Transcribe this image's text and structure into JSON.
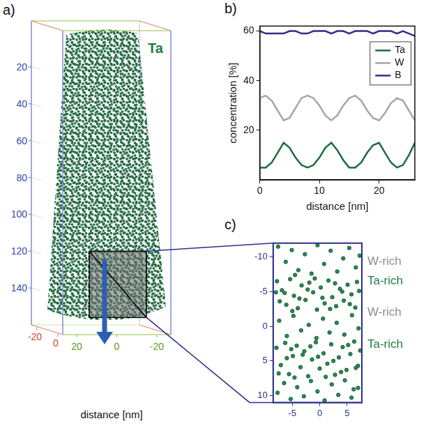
{
  "chart_data": [
    {
      "panel": "a)",
      "type": "atom_map",
      "title": "Ta",
      "color": "#1f7a46",
      "zlim": [
        160,
        -5
      ],
      "zticks": [
        20,
        40,
        60,
        80,
        100,
        120,
        140
      ],
      "xlim": [
        27,
        -27
      ],
      "xticks": [
        20,
        0,
        -20
      ],
      "depth_lim": [
        -26,
        4
      ],
      "depth_ticks": [
        -20,
        0
      ],
      "xlabel": "distance [nm]",
      "zoom_region": [
        120,
        156
      ]
    },
    {
      "panel": "b)",
      "type": "line",
      "xlabel": "distance [nm]",
      "ylabel": "concentration [%]",
      "x": [
        0,
        1,
        2,
        3,
        4,
        5,
        6,
        7,
        8,
        9,
        10,
        11,
        12,
        13,
        14,
        15,
        16,
        17,
        18,
        19,
        20,
        21,
        22,
        23,
        24,
        25,
        26
      ],
      "series": [
        {
          "name": "Ta",
          "color": "#1a6b3a",
          "values": [
            5,
            5,
            7,
            11,
            15,
            13,
            9,
            6,
            5,
            6,
            9,
            13,
            15,
            12,
            8,
            5,
            5,
            7,
            11,
            14,
            15,
            11,
            7,
            5,
            6,
            10,
            15
          ]
        },
        {
          "name": "W",
          "color": "#a6a6a6",
          "values": [
            33,
            34,
            32,
            28,
            24,
            25,
            29,
            33,
            34,
            33,
            30,
            26,
            24,
            26,
            30,
            33,
            34,
            32,
            28,
            25,
            24,
            27,
            31,
            33,
            32,
            28,
            24
          ]
        },
        {
          "name": "B",
          "color": "#2b2f8c",
          "values": [
            60,
            59,
            59,
            59,
            59,
            60,
            60,
            59,
            59,
            60,
            60,
            60,
            59,
            60,
            60,
            59,
            60,
            60,
            60,
            59,
            60,
            60,
            60,
            59,
            60,
            59,
            58
          ]
        }
      ],
      "xlim": [
        0,
        26
      ],
      "xticks": [
        0,
        10,
        20
      ],
      "ylim": [
        0,
        62
      ],
      "yticks": [
        20,
        40,
        60
      ],
      "legend": "upper right",
      "grid": false
    },
    {
      "panel": "c)",
      "type": "scatter",
      "color": "#2a8a4f",
      "x": [
        -7.8,
        -6.9,
        -6.1,
        -5.4,
        -4.7,
        -4.0,
        -3.3,
        -2.6,
        -1.9,
        -1.2,
        -0.5,
        0.2,
        0.9,
        1.6,
        2.3,
        3.0,
        3.7,
        4.4,
        5.1,
        5.8,
        6.5,
        7.2,
        -7.3,
        -6.4,
        -5.0,
        -3.7,
        -2.2,
        -0.9,
        0.5,
        1.9,
        2.8,
        4.1,
        5.5,
        6.8,
        -8.0,
        -7.9,
        -7.1,
        -6.3,
        -5.6,
        -4.9,
        -4.2,
        -3.5,
        -2.8,
        -2.1,
        -1.4,
        -0.7,
        0.0,
        0.7,
        1.4,
        2.1,
        2.8,
        3.5,
        4.2,
        4.9,
        5.6,
        6.3,
        7.0,
        -7.5,
        -6.0,
        -4.6,
        -3.1,
        -1.7,
        -0.3,
        1.1,
        2.5,
        3.9,
        5.2,
        6.6,
        7.4,
        -5.2,
        -7.6,
        -6.2,
        -5.1,
        -3.9,
        -2.7,
        -1.5,
        -0.4,
        0.8,
        2.0,
        3.2,
        4.3,
        5.4,
        6.6,
        7.3,
        -4.5,
        -7.4,
        -6.0,
        -4.8,
        -3.4,
        -2.0,
        -0.6,
        0.6,
        1.8,
        3.1,
        4.5,
        5.9,
        7.1,
        -7.7,
        -6.5,
        -5.3,
        -4.1,
        -2.9,
        -1.6,
        -0.4,
        0.9,
        2.2,
        3.4,
        4.6,
        5.8,
        7.0,
        6.2
      ],
      "values": [
        -6.5,
        -5.2,
        -3.1,
        -6.8,
        -4.4,
        -2.6,
        -5.9,
        -3.8,
        -6.3,
        -4.9,
        -2.4,
        -5.6,
        -3.3,
        -6.6,
        -4.2,
        -2.9,
        -5.4,
        -3.7,
        -6.0,
        -4.6,
        -2.7,
        -5.1,
        -3.6,
        -4.8,
        -2.2,
        -4.0,
        -5.3,
        -6.9,
        -4.1,
        -2.5,
        -6.2,
        -5.0,
        -3.2,
        -6.4,
        -4.9,
        3.1,
        5.6,
        2.4,
        6.9,
        4.3,
        2.8,
        5.9,
        3.6,
        7.2,
        4.8,
        2.3,
        6.1,
        3.9,
        5.4,
        2.6,
        7.0,
        4.5,
        3.0,
        6.3,
        4.0,
        2.2,
        5.7,
        6.8,
        4.6,
        7.4,
        4.1,
        2.9,
        4.4,
        7.3,
        5.0,
        6.6,
        2.7,
        6.0,
        3.5,
        3.3,
        -11.5,
        -9.3,
        -11.0,
        -8.1,
        -10.4,
        -7.6,
        -11.7,
        -9.0,
        -10.9,
        -7.9,
        -9.8,
        -11.3,
        -8.5,
        -10.2,
        -7.4,
        -0.8,
        1.4,
        -1.5,
        0.6,
        -0.2,
        1.7,
        -1.1,
        0.9,
        -0.5,
        1.2,
        -1.6,
        0.3,
        9.6,
        8.2,
        10.5,
        8.8,
        10.1,
        7.9,
        9.4,
        10.7,
        8.4,
        9.9,
        7.8,
        10.3,
        8.9,
        9.1
      ],
      "xlim": [
        -8.5,
        7.7
      ],
      "xticks": [
        -5,
        0,
        5
      ],
      "ylim": [
        11,
        -12
      ],
      "yticks": [
        -10,
        -5,
        0,
        5,
        10
      ],
      "grid": false,
      "annotations": [
        {
          "text": "W-rich",
          "y": -9.3,
          "color": "#8c8c8c"
        },
        {
          "text": "Ta-rich",
          "y": -6.5,
          "color": "#1f7a46"
        },
        {
          "text": "W-rich",
          "y": -2.0,
          "color": "#8c8c8c"
        },
        {
          "text": "Ta-rich",
          "y": 2.6,
          "color": "#1f7a46"
        }
      ]
    }
  ]
}
